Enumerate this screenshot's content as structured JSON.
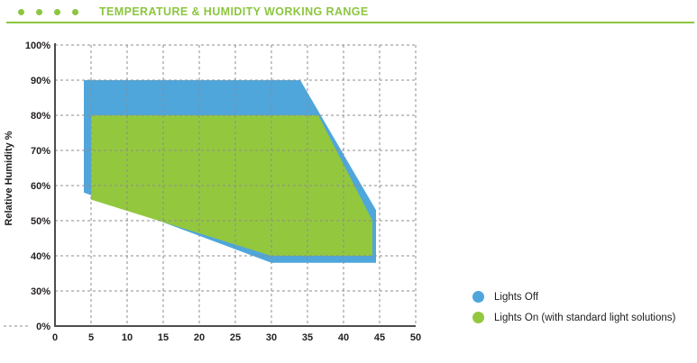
{
  "header": {
    "bullet_count": 4
  },
  "theme": {
    "accent_green": "#8CC63F",
    "grid_color": "#8C8C8C",
    "axis_color": "#4D4D4D",
    "text_color": "#231F20"
  },
  "chart_data": {
    "type": "area",
    "title": "TEMPERATURE & HUMIDITY WORKING RANGE",
    "xlabel": "",
    "ylabel": "Relative Humidity %",
    "xlim": [
      0,
      50
    ],
    "x_ticks": [
      0,
      5,
      10,
      15,
      20,
      25,
      30,
      35,
      40,
      45,
      50
    ],
    "y_tick_labels": [
      "100%",
      "90%",
      "80%",
      "70%",
      "60%",
      "50%",
      "40%",
      "30%",
      "0%"
    ],
    "y_axis_note": "axis break between 30% and 0% (one gridline step)",
    "grid": "dashed, both directions, drawn over the filled areas",
    "legend_position": "bottom-right, outside plot",
    "series": [
      {
        "name": "Lights Off",
        "color": "#4FA6DB",
        "points": [
          [
            4,
            90
          ],
          [
            34,
            90
          ],
          [
            44.5,
            53
          ],
          [
            44.5,
            38
          ],
          [
            30,
            38
          ],
          [
            4,
            58
          ]
        ]
      },
      {
        "name": "Lights On (with standard light solutions)",
        "color": "#93C83E",
        "points": [
          [
            5,
            80
          ],
          [
            36.5,
            80
          ],
          [
            44,
            50
          ],
          [
            44,
            40
          ],
          [
            30,
            40
          ],
          [
            5,
            56
          ]
        ]
      }
    ]
  }
}
